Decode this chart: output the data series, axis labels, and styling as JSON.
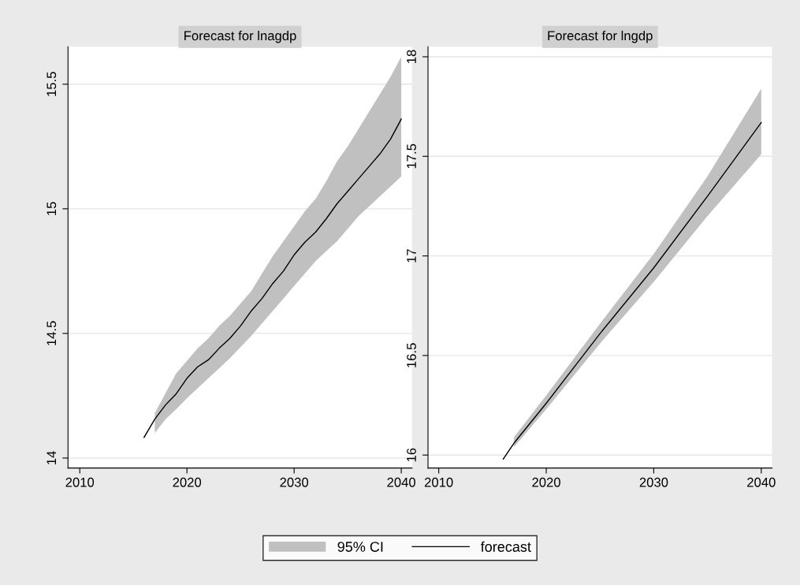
{
  "chart_data": [
    {
      "type": "line",
      "title": "Forecast for lnagdp",
      "xlim": [
        2008.9,
        2041
      ],
      "xticks": [
        2010,
        2020,
        2030,
        2040
      ],
      "ylim": [
        13.96,
        15.65
      ],
      "yticks": [
        14,
        14.5,
        15,
        15.5
      ],
      "grid": "y",
      "legend": "bottom",
      "annotations": [
        "95% CI"
      ],
      "series": [
        {
          "name": "forecast",
          "color": "#000000",
          "x": [
            2016,
            2017,
            2018,
            2019,
            2020,
            2021,
            2022,
            2023,
            2024,
            2025,
            2026,
            2027,
            2028,
            2029,
            2030,
            2031,
            2032,
            2033,
            2034,
            2035,
            2036,
            2037,
            2038,
            2039,
            2040
          ],
          "values": [
            14.083,
            14.156,
            14.213,
            14.258,
            14.32,
            14.366,
            14.394,
            14.44,
            14.48,
            14.53,
            14.59,
            14.64,
            14.7,
            14.75,
            14.815,
            14.866,
            14.906,
            14.96,
            15.02,
            15.07,
            15.12,
            15.17,
            15.22,
            15.28,
            15.36
          ],
          "lower": [
            null,
            14.1,
            14.156,
            14.196,
            14.24,
            14.28,
            14.32,
            14.36,
            14.4,
            14.445,
            14.49,
            14.54,
            14.59,
            14.64,
            14.69,
            14.74,
            14.79,
            14.83,
            14.87,
            14.92,
            14.97,
            15.01,
            15.05,
            15.09,
            15.13
          ],
          "upper": [
            null,
            14.18,
            14.26,
            14.34,
            14.39,
            14.44,
            14.48,
            14.53,
            14.57,
            14.62,
            14.67,
            14.74,
            14.81,
            14.87,
            14.93,
            14.99,
            15.04,
            15.11,
            15.19,
            15.25,
            15.32,
            15.39,
            15.46,
            15.53,
            15.61
          ]
        }
      ]
    },
    {
      "type": "line",
      "title": "Forecast for lngdp",
      "xlim": [
        2009,
        2041
      ],
      "xticks": [
        2010,
        2020,
        2030,
        2040
      ],
      "ylim": [
        15.935,
        18.05
      ],
      "yticks": [
        16,
        16.5,
        17,
        17.5,
        18
      ],
      "grid": "y",
      "series": [
        {
          "color": "#000000",
          "x": [
            2016,
            2017,
            2020,
            2025,
            2030,
            2035,
            2040
          ],
          "values": [
            15.98,
            16.06,
            16.26,
            16.61,
            16.94,
            17.3,
            17.67
          ],
          "lower": [
            null,
            16.04,
            16.23,
            16.56,
            16.87,
            17.2,
            17.51
          ],
          "upper": [
            null,
            16.09,
            16.3,
            16.66,
            17.01,
            17.4,
            17.84
          ]
        }
      ]
    }
  ]
}
